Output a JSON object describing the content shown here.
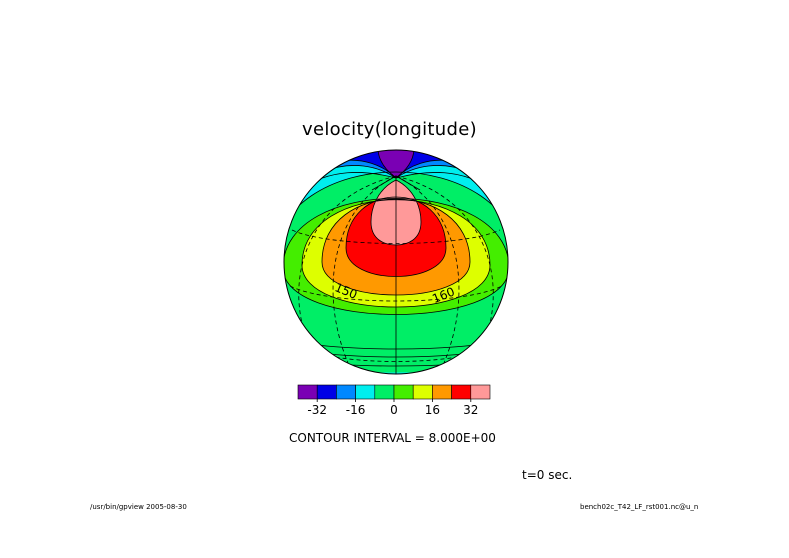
{
  "plot": {
    "title": "velocity(longitude)",
    "contour_interval_label": "CONTOUR INTERVAL = 8.000E+00",
    "time_label": "t=0 sec.",
    "footer_left": "/usr/bin/gpview  2005-08-30",
    "footer_right": "bench02c_T42_LF_rst001.nc@u_n",
    "meridian_labels": [
      "150",
      "160"
    ]
  },
  "colorbar": {
    "colors": [
      "#7a00b4",
      "#0000e6",
      "#0088ff",
      "#00eeee",
      "#00ee66",
      "#44ee00",
      "#ddff00",
      "#ff9900",
      "#ff0000",
      "#ff9999"
    ],
    "tick_labels": [
      "-32",
      "-16",
      "0",
      "16",
      "32"
    ],
    "tick_values": [
      -32,
      -16,
      0,
      16,
      32
    ],
    "boundaries": [
      -40,
      -32,
      -24,
      -16,
      -8,
      0,
      8,
      16,
      24,
      32,
      40
    ]
  }
}
